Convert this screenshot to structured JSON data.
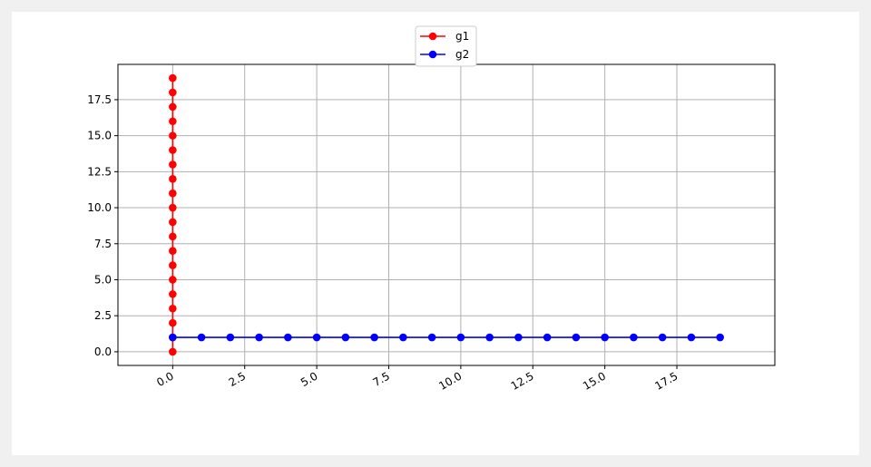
{
  "chart_data": {
    "type": "line",
    "title": "",
    "xlabel": "",
    "ylabel": "",
    "xlim": [
      -1.9,
      20.9
    ],
    "ylim": [
      -0.95,
      19.95
    ],
    "grid": true,
    "legend_position": "top-center",
    "x_ticks": [
      "0.0",
      "2.5",
      "5.0",
      "7.5",
      "10.0",
      "12.5",
      "15.0",
      "17.5"
    ],
    "x_tick_values": [
      0,
      2.5,
      5,
      7.5,
      10,
      12.5,
      15,
      17.5
    ],
    "y_ticks": [
      "0.0",
      "2.5",
      "5.0",
      "7.5",
      "10.0",
      "12.5",
      "15.0",
      "17.5"
    ],
    "y_tick_values": [
      0,
      2.5,
      5,
      7.5,
      10,
      12.5,
      15,
      17.5
    ],
    "series": [
      {
        "name": "g1",
        "color": "#ff0000",
        "marker": "circle",
        "x": [
          0,
          0,
          0,
          0,
          0,
          0,
          0,
          0,
          0,
          0,
          0,
          0,
          0,
          0,
          0,
          0,
          0,
          0,
          0,
          0
        ],
        "y": [
          0,
          1,
          2,
          3,
          4,
          5,
          6,
          7,
          8,
          9,
          10,
          11,
          12,
          13,
          14,
          15,
          16,
          17,
          18,
          19
        ]
      },
      {
        "name": "g2",
        "color": "#0000ff",
        "marker": "circle",
        "x": [
          0,
          1,
          2,
          3,
          4,
          5,
          6,
          7,
          8,
          9,
          10,
          11,
          12,
          13,
          14,
          15,
          16,
          17,
          18,
          19
        ],
        "y": [
          1,
          1,
          1,
          1,
          1,
          1,
          1,
          1,
          1,
          1,
          1,
          1,
          1,
          1,
          1,
          1,
          1,
          1,
          1,
          1
        ]
      }
    ]
  }
}
